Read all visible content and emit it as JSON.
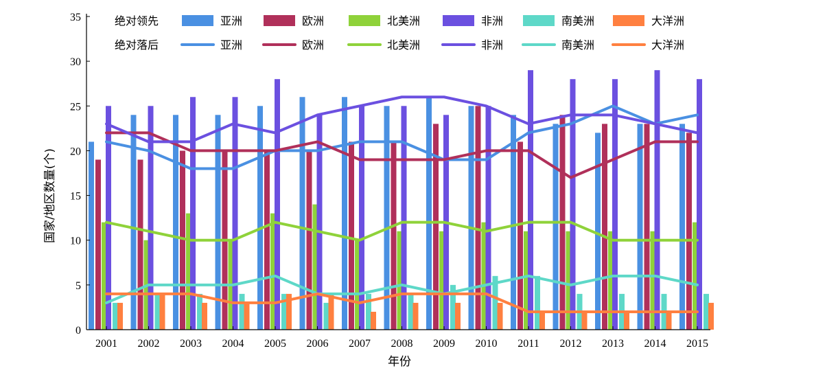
{
  "chart_data": {
    "type": "bar",
    "xlabel": "年份",
    "ylabel": "国家/地区数量(个)",
    "ylim": [
      0,
      35
    ],
    "yticks": [
      0,
      5,
      10,
      15,
      20,
      25,
      30,
      35
    ],
    "grid": false,
    "legend_position": "top",
    "categories": [
      "2001",
      "2002",
      "2003",
      "2004",
      "2005",
      "2006",
      "2007",
      "2008",
      "2009",
      "2010",
      "2011",
      "2012",
      "2013",
      "2014",
      "2015"
    ],
    "legend": {
      "bar_group_label": "绝对领先",
      "line_group_label": "绝对落后"
    },
    "bar_series": [
      {
        "name": "亚洲",
        "color": "#4a90e2",
        "values": [
          21,
          24,
          24,
          24,
          25,
          26,
          26,
          25,
          26,
          25,
          24,
          23,
          22,
          23,
          23
        ]
      },
      {
        "name": "欧洲",
        "color": "#b0305a",
        "values": [
          19,
          19,
          20,
          20,
          20,
          20,
          21,
          21,
          23,
          25,
          21,
          24,
          23,
          23,
          22
        ]
      },
      {
        "name": "北美洲",
        "color": "#8fd23a",
        "values": [
          12,
          10,
          13,
          10,
          13,
          14,
          10,
          11,
          11,
          12,
          11,
          11,
          11,
          11,
          12
        ]
      },
      {
        "name": "非洲",
        "color": "#6b50e0",
        "values": [
          25,
          25,
          26,
          26,
          28,
          24,
          25,
          25,
          24,
          25,
          29,
          28,
          28,
          29,
          28
        ]
      },
      {
        "name": "南美洲",
        "color": "#5ed8c8",
        "values": [
          3,
          4,
          4,
          4,
          4,
          3,
          4,
          4,
          5,
          6,
          6,
          4,
          4,
          4,
          4
        ]
      },
      {
        "name": "大洋洲",
        "color": "#ff8040",
        "values": [
          3,
          4,
          3,
          3,
          4,
          4,
          2,
          3,
          3,
          3,
          2,
          2,
          2,
          2,
          3
        ]
      }
    ],
    "line_series": [
      {
        "name": "亚洲",
        "color": "#4a90e2",
        "values": [
          21,
          20,
          18,
          18,
          20,
          20,
          21,
          21,
          19,
          19,
          22,
          23,
          25,
          23,
          24
        ]
      },
      {
        "name": "欧洲",
        "color": "#b0305a",
        "values": [
          22,
          22,
          20,
          20,
          20,
          21,
          19,
          19,
          19,
          20,
          20,
          17,
          19,
          21,
          21
        ]
      },
      {
        "name": "北美洲",
        "color": "#8fd23a",
        "values": [
          12,
          11,
          10,
          10,
          12,
          11,
          10,
          12,
          12,
          11,
          12,
          12,
          10,
          10,
          10
        ]
      },
      {
        "name": "非洲",
        "color": "#6b50e0",
        "values": [
          23,
          21,
          21,
          23,
          22,
          24,
          25,
          26,
          26,
          25,
          23,
          24,
          24,
          23,
          22
        ]
      },
      {
        "name": "南美洲",
        "color": "#5ed8c8",
        "values": [
          3,
          5,
          5,
          5,
          6,
          4,
          4,
          5,
          4,
          5,
          6,
          5,
          6,
          6,
          5
        ]
      },
      {
        "name": "大洋洲",
        "color": "#ff8040",
        "values": [
          4,
          4,
          4,
          3,
          3,
          4,
          3,
          4,
          4,
          4,
          2,
          2,
          2,
          2,
          2
        ]
      }
    ]
  }
}
